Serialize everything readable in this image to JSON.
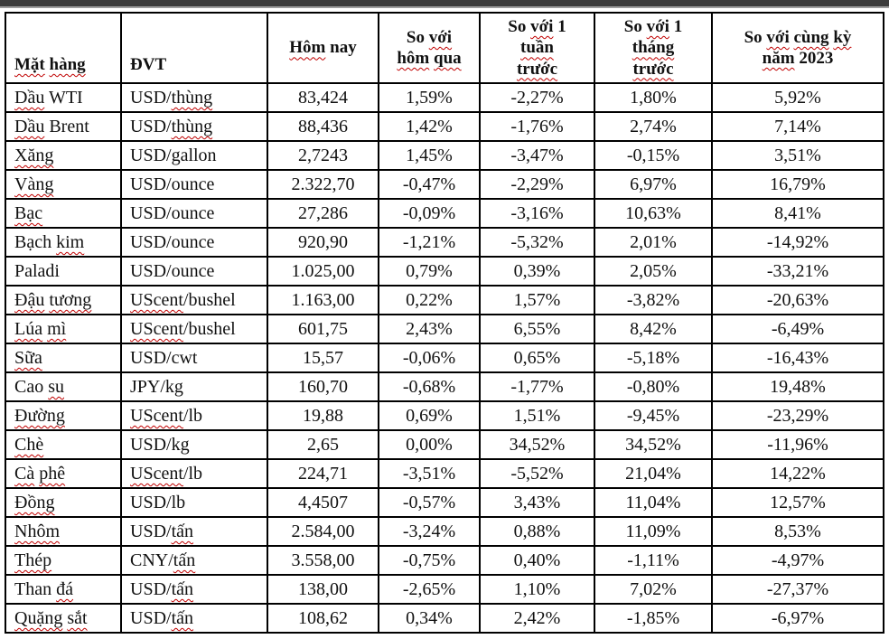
{
  "page": {
    "top_bar_color": "#3b3b3b",
    "top_bar_accent": "#9d9d9d",
    "spellcheck_color": "#c00000",
    "background": "#ffffff"
  },
  "table": {
    "columns": [
      {
        "key": "name",
        "label": "Mặt hàng",
        "flagged": [
          "Mặt",
          "hàng"
        ],
        "align": "left"
      },
      {
        "key": "unit",
        "label": "ĐVT",
        "flagged": [],
        "align": "left"
      },
      {
        "key": "today",
        "label": "Hôm nay",
        "flagged": [
          "Hôm"
        ],
        "align": "center"
      },
      {
        "key": "vs_yesterday",
        "label": "So với\nhôm qua",
        "flagged": [
          "với",
          "hôm",
          "qua"
        ],
        "align": "center"
      },
      {
        "key": "vs_week",
        "label": "So với 1\ntuần\ntrước",
        "flagged": [
          "với",
          "tuần",
          "trước"
        ],
        "align": "center"
      },
      {
        "key": "vs_month",
        "label": "So với 1\ntháng\ntrước",
        "flagged": [
          "với",
          "tháng",
          "trước"
        ],
        "align": "center"
      },
      {
        "key": "vs_2023",
        "label": "So với cùng kỳ\nnăm 2023",
        "flagged": [
          "với",
          "cùng",
          "kỳ",
          "năm"
        ],
        "align": "center"
      }
    ],
    "rows": [
      {
        "name": "Dầu WTI",
        "name_flagged": [
          "Dầu"
        ],
        "unit": "USD/thùng",
        "unit_flagged": [
          "thùng"
        ],
        "today": "83,424",
        "vs_yesterday": "1,59%",
        "vs_week": "-2,27%",
        "vs_month": "1,80%",
        "vs_2023": "5,92%"
      },
      {
        "name": "Dầu Brent",
        "name_flagged": [
          "Dầu"
        ],
        "unit": "USD/thùng",
        "unit_flagged": [
          "thùng"
        ],
        "today": "88,436",
        "vs_yesterday": "1,42%",
        "vs_week": "-1,76%",
        "vs_month": "2,74%",
        "vs_2023": "7,14%"
      },
      {
        "name": "Xăng",
        "name_flagged": [
          "Xăng"
        ],
        "unit": "USD/gallon",
        "unit_flagged": [],
        "today": "2,7243",
        "vs_yesterday": "1,45%",
        "vs_week": "-3,47%",
        "vs_month": "-0,15%",
        "vs_2023": "3,51%"
      },
      {
        "name": "Vàng",
        "name_flagged": [
          "Vàng"
        ],
        "unit": "USD/ounce",
        "unit_flagged": [],
        "today": "2.322,70",
        "vs_yesterday": "-0,47%",
        "vs_week": "-2,29%",
        "vs_month": "6,97%",
        "vs_2023": "16,79%"
      },
      {
        "name": "Bạc",
        "name_flagged": [
          "Bạc"
        ],
        "unit": "USD/ounce",
        "unit_flagged": [],
        "today": "27,286",
        "vs_yesterday": "-0,09%",
        "vs_week": "-3,16%",
        "vs_month": "10,63%",
        "vs_2023": "8,41%"
      },
      {
        "name": "Bạch kim",
        "name_flagged": [
          "kim"
        ],
        "unit": "USD/ounce",
        "unit_flagged": [],
        "today": "920,90",
        "vs_yesterday": "-1,21%",
        "vs_week": "-5,32%",
        "vs_month": "2,01%",
        "vs_2023": "-14,92%"
      },
      {
        "name": "Paladi",
        "name_flagged": [],
        "unit": "USD/ounce",
        "unit_flagged": [],
        "today": "1.025,00",
        "vs_yesterday": "0,79%",
        "vs_week": "0,39%",
        "vs_month": "2,05%",
        "vs_2023": "-33,21%"
      },
      {
        "name": "Đậu tương",
        "name_flagged": [
          "Đậu",
          "tương"
        ],
        "unit": "UScent/bushel",
        "unit_flagged": [
          "UScent"
        ],
        "today": "1.163,00",
        "vs_yesterday": "0,22%",
        "vs_week": "1,57%",
        "vs_month": "-3,82%",
        "vs_2023": "-20,63%"
      },
      {
        "name": "Lúa mì",
        "name_flagged": [
          "Lúa",
          "mì"
        ],
        "unit": "UScent/bushel",
        "unit_flagged": [
          "UScent"
        ],
        "today": "601,75",
        "vs_yesterday": "2,43%",
        "vs_week": "6,55%",
        "vs_month": "8,42%",
        "vs_2023": "-6,49%"
      },
      {
        "name": "Sữa",
        "name_flagged": [
          "Sữa"
        ],
        "unit": "USD/cwt",
        "unit_flagged": [],
        "today": "15,57",
        "vs_yesterday": "-0,06%",
        "vs_week": "0,65%",
        "vs_month": "-5,18%",
        "vs_2023": "-16,43%"
      },
      {
        "name": "Cao su",
        "name_flagged": [
          "su"
        ],
        "unit": "JPY/kg",
        "unit_flagged": [],
        "today": "160,70",
        "vs_yesterday": "-0,68%",
        "vs_week": "-1,77%",
        "vs_month": "-0,80%",
        "vs_2023": "19,48%"
      },
      {
        "name": "Đường",
        "name_flagged": [
          "Đường"
        ],
        "unit": "UScent/lb",
        "unit_flagged": [
          "UScent"
        ],
        "today": "19,88",
        "vs_yesterday": "0,69%",
        "vs_week": "1,51%",
        "vs_month": "-9,45%",
        "vs_2023": "-23,29%"
      },
      {
        "name": "Chè",
        "name_flagged": [
          "Chè"
        ],
        "unit": "USD/kg",
        "unit_flagged": [],
        "today": "2,65",
        "vs_yesterday": "0,00%",
        "vs_week": "34,52%",
        "vs_month": "34,52%",
        "vs_2023": "-11,96%"
      },
      {
        "name": "Cà phê",
        "name_flagged": [
          "Cà",
          "phê"
        ],
        "unit": "UScent/lb",
        "unit_flagged": [
          "UScent"
        ],
        "today": "224,71",
        "vs_yesterday": "-3,51%",
        "vs_week": "-5,52%",
        "vs_month": "21,04%",
        "vs_2023": "14,22%"
      },
      {
        "name": "Đồng",
        "name_flagged": [
          "Đồng"
        ],
        "unit": "USD/lb",
        "unit_flagged": [],
        "today": "4,4507",
        "vs_yesterday": "-0,57%",
        "vs_week": "3,43%",
        "vs_month": "11,04%",
        "vs_2023": "12,57%"
      },
      {
        "name": "Nhôm",
        "name_flagged": [
          "Nhôm"
        ],
        "unit": "USD/tấn",
        "unit_flagged": [
          "tấn"
        ],
        "today": "2.584,00",
        "vs_yesterday": "-3,24%",
        "vs_week": "0,88%",
        "vs_month": "11,09%",
        "vs_2023": "8,53%"
      },
      {
        "name": "Thép",
        "name_flagged": [
          "Thép"
        ],
        "unit": "CNY/tấn",
        "unit_flagged": [
          "tấn"
        ],
        "today": "3.558,00",
        "vs_yesterday": "-0,75%",
        "vs_week": "0,40%",
        "vs_month": "-1,11%",
        "vs_2023": "-4,97%"
      },
      {
        "name": "Than đá",
        "name_flagged": [
          "đá"
        ],
        "unit": "USD/tấn",
        "unit_flagged": [
          "tấn"
        ],
        "today": "138,00",
        "vs_yesterday": "-2,65%",
        "vs_week": "1,10%",
        "vs_month": "7,02%",
        "vs_2023": "-27,37%"
      },
      {
        "name": "Quặng sắt",
        "name_flagged": [
          "Quặng",
          "sắt"
        ],
        "unit": "USD/tấn",
        "unit_flagged": [
          "tấn"
        ],
        "today": "108,62",
        "vs_yesterday": "0,34%",
        "vs_week": "2,42%",
        "vs_month": "-1,85%",
        "vs_2023": "-6,97%"
      }
    ]
  }
}
